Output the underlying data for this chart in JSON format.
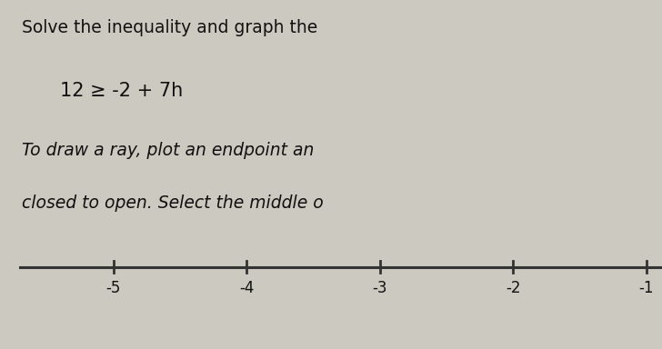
{
  "title_line1": "Solve the inequality and graph the",
  "inequality": "12 ≥ -2 + 7h",
  "instruction_line1": "To draw a ray, plot an endpoint an",
  "instruction_line2": "closed to open. Select the middle o",
  "background_color": "#ccc9c0",
  "text_color": "#111111",
  "number_line_ticks": [
    -5,
    -4,
    -3,
    -2,
    -1
  ],
  "arrow_left": true,
  "title_fontsize": 13.5,
  "inequality_fontsize": 15,
  "instruction_fontsize": 13.5,
  "tick_label_fontsize": 12,
  "nl_data_min": -5.7,
  "nl_data_max": -0.8
}
